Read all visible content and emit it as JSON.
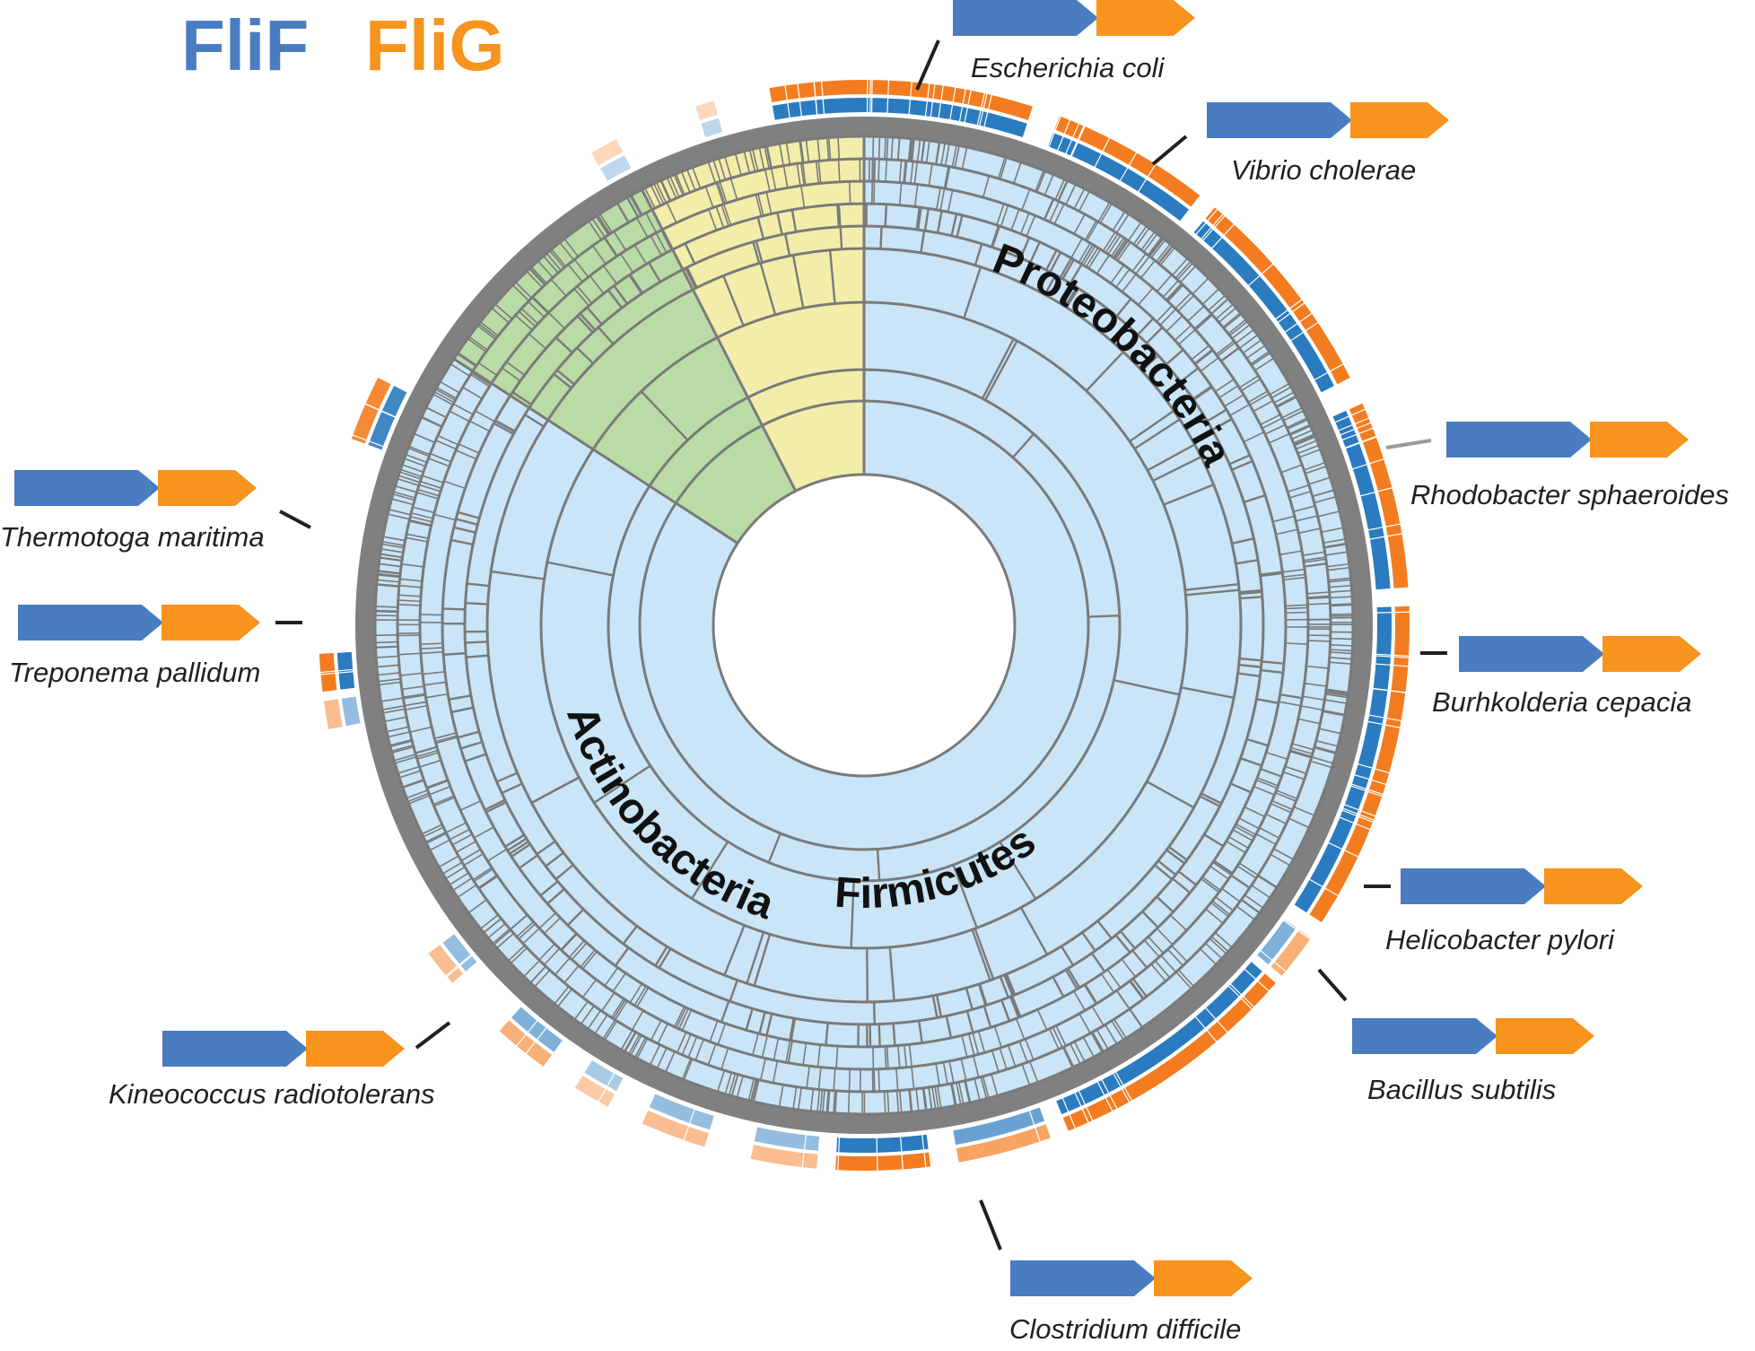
{
  "legend": {
    "flif_label": "FliF",
    "flig_label": "FliG"
  },
  "colors": {
    "flif": "#4a7cc2",
    "flig": "#f7941d",
    "flif_track": "#2a7bbf",
    "flig_track": "#f47c20",
    "proteobacteria_fill": "#c9e5f7",
    "sector_green": "#b9dba5",
    "sector_yellow": "#f2eeaa",
    "outer_ring": "#808080",
    "divider": "#7a7a7a"
  },
  "phyla": {
    "proteobacteria": "Proteobacteria",
    "actinobacteria": "Actinobacteria",
    "firmicutes": "Firmicutes"
  },
  "species": [
    {
      "name": "Escherichia coli"
    },
    {
      "name": "Vibrio cholerae"
    },
    {
      "name": "Rhodobacter sphaeroides"
    },
    {
      "name": "Burhkolderia cepacia"
    },
    {
      "name": "Helicobacter pylori"
    },
    {
      "name": "Bacillus subtilis"
    },
    {
      "name": "Clostridium difficile"
    },
    {
      "name": "Kineococcus radiotolerans"
    },
    {
      "name": "Treponema pallidum"
    },
    {
      "name": "Thermotoga maritima"
    }
  ],
  "gene_icons": {
    "flif": "blue-pentagon-arrow",
    "flig": "orange-pentagon-arrow"
  }
}
